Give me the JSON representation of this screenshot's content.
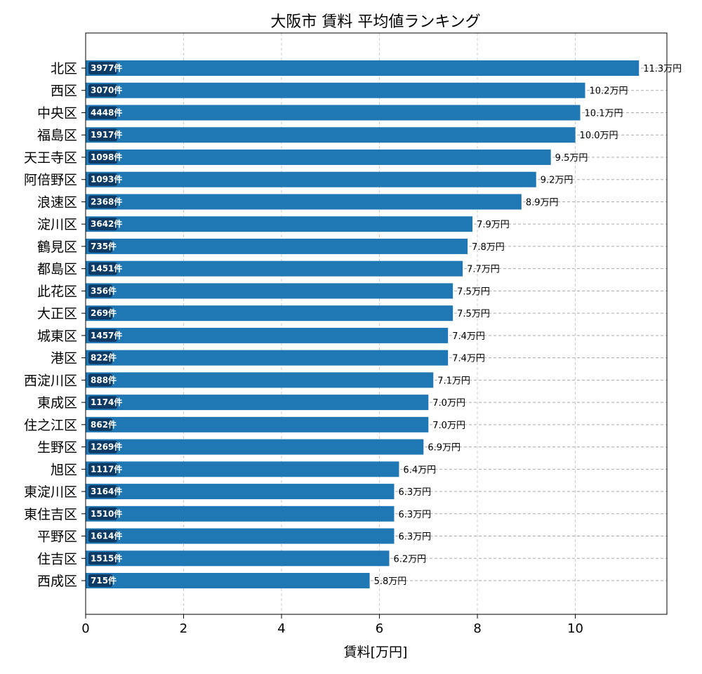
{
  "chart_data": {
    "type": "bar",
    "orientation": "horizontal",
    "title": "大阪市 賃料 平均値ランキング",
    "xlabel": "賃料[万円]",
    "ylabel": "",
    "xlim": [
      0,
      11.87
    ],
    "xticks": [
      0,
      2,
      4,
      6,
      8,
      10
    ],
    "grid": true,
    "bar_color": "#1f77b4",
    "count_badge_color": "#0d3b66",
    "value_suffix": "万円",
    "count_suffix": "件",
    "categories": [
      "北区",
      "西区",
      "中央区",
      "福島区",
      "天王寺区",
      "阿倍野区",
      "浪速区",
      "淀川区",
      "鶴見区",
      "都島区",
      "此花区",
      "大正区",
      "城東区",
      "港区",
      "西淀川区",
      "東成区",
      "住之江区",
      "生野区",
      "旭区",
      "東淀川区",
      "東住吉区",
      "平野区",
      "住吉区",
      "西成区"
    ],
    "values": [
      11.3,
      10.2,
      10.1,
      10.0,
      9.5,
      9.2,
      8.9,
      7.9,
      7.8,
      7.7,
      7.5,
      7.5,
      7.4,
      7.4,
      7.1,
      7.0,
      7.0,
      6.9,
      6.4,
      6.3,
      6.3,
      6.3,
      6.2,
      5.8
    ],
    "value_labels": [
      "11.3万円",
      "10.2万円",
      "10.1万円",
      "10.0万円",
      "9.5万円",
      "9.2万円",
      "8.9万円",
      "7.9万円",
      "7.8万円",
      "7.7万円",
      "7.5万円",
      "7.5万円",
      "7.4万円",
      "7.4万円",
      "7.1万円",
      "7.0万円",
      "7.0万円",
      "6.9万円",
      "6.4万円",
      "6.3万円",
      "6.3万円",
      "6.3万円",
      "6.2万円",
      "5.8万円"
    ],
    "counts": [
      3977,
      3070,
      4448,
      1917,
      1098,
      1093,
      2368,
      3642,
      735,
      1451,
      356,
      269,
      1457,
      822,
      888,
      1174,
      862,
      1269,
      1117,
      3164,
      1510,
      1614,
      1515,
      715
    ]
  }
}
